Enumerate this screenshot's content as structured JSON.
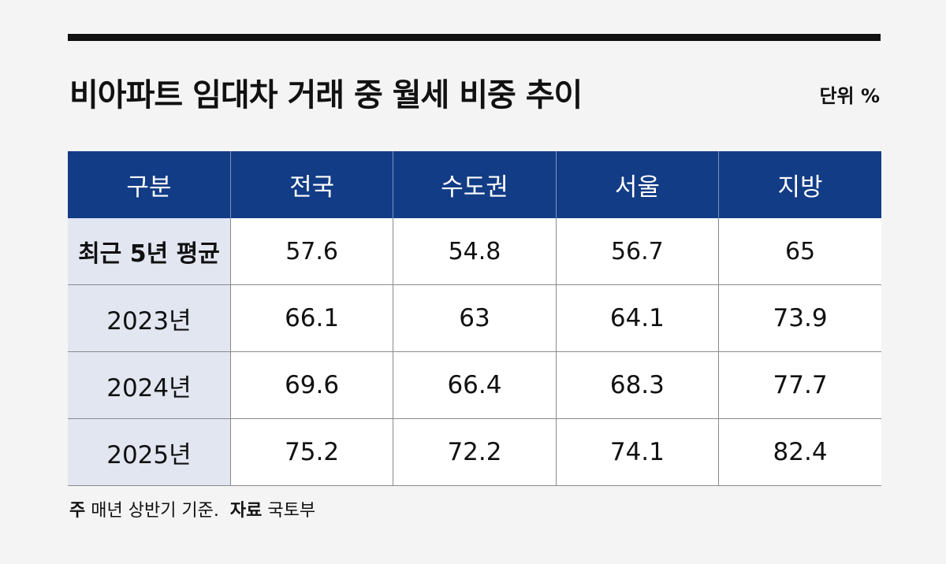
{
  "title": "비아파트 임대차 거래 중 월세 비중 추이",
  "unit_label": "단위 %",
  "note": {
    "basis_label": "주",
    "basis_text": "매년 상반기 기준.",
    "source_label": "자료",
    "source_text": "국토부"
  },
  "chart_data": {
    "type": "table",
    "title": "비아파트 임대차 거래 중 월세 비중 추이",
    "unit": "%",
    "header": [
      "구분",
      "전국",
      "수도권",
      "서울",
      "지방"
    ],
    "rows": [
      {
        "label": "최근 5년 평균",
        "values": [
          "57.6",
          "54.8",
          "56.7",
          "65"
        ]
      },
      {
        "label": "2023년",
        "values": [
          "66.1",
          "63",
          "64.1",
          "73.9"
        ]
      },
      {
        "label": "2024년",
        "values": [
          "69.6",
          "66.4",
          "68.3",
          "77.7"
        ]
      },
      {
        "label": "2025년",
        "values": [
          "75.2",
          "72.2",
          "74.1",
          "82.4"
        ]
      }
    ]
  }
}
